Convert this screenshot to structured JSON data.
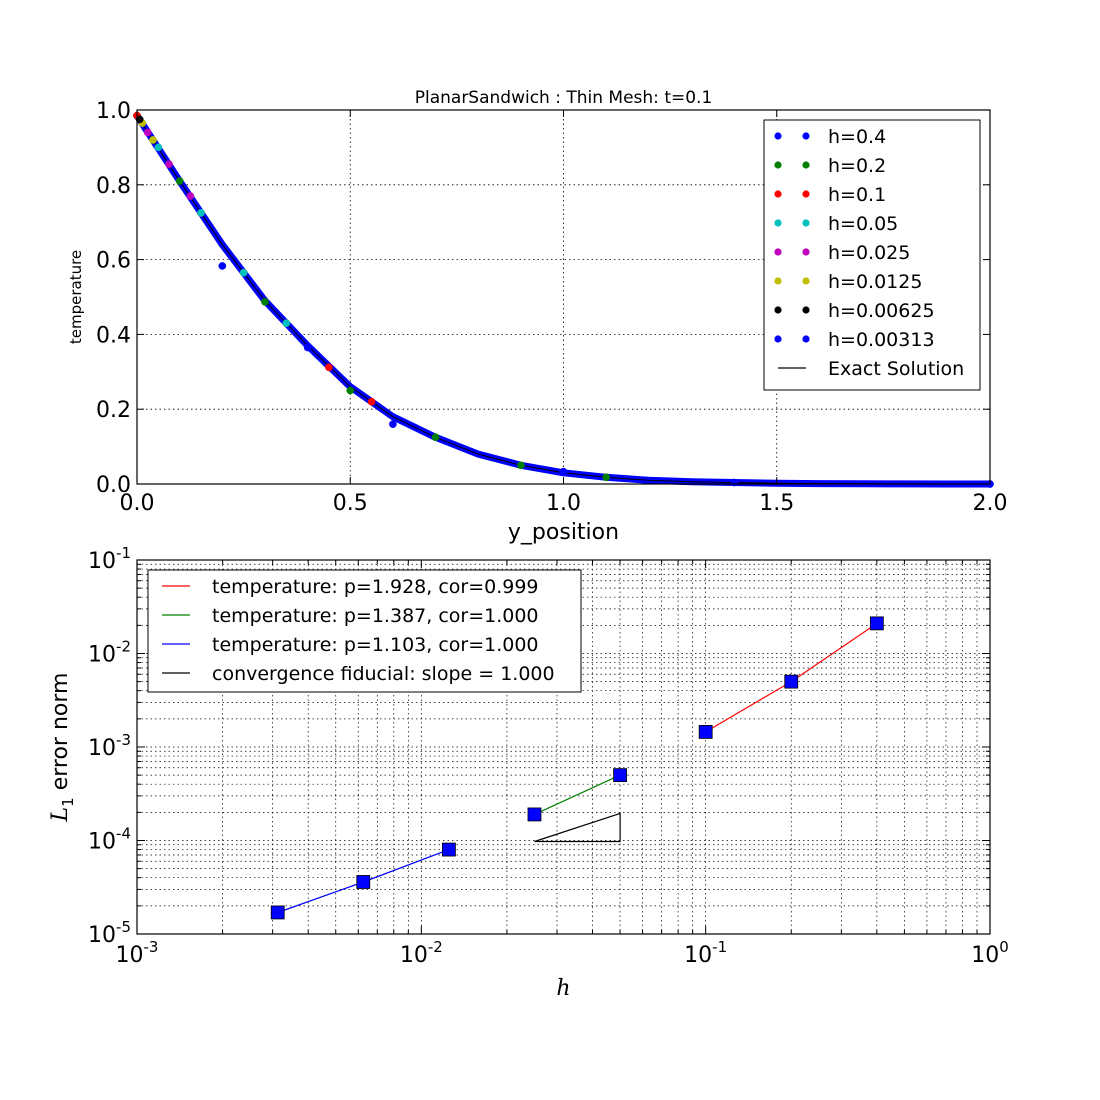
{
  "chart_data": [
    {
      "type": "scatter",
      "title": "PlanarSandwich : Thin Mesh: t=0.1",
      "xlabel": "y_position",
      "ylabel": "temperature",
      "xlim": [
        0.0,
        2.0
      ],
      "ylim": [
        0.0,
        1.0
      ],
      "xticks": [
        "0.0",
        "0.5",
        "1.0",
        "1.5",
        "2.0"
      ],
      "yticks": [
        "0.0",
        "0.2",
        "0.4",
        "0.6",
        "0.8",
        "1.0"
      ],
      "grid": true,
      "legend_position": "top-right",
      "exact_solution": {
        "name": "Exact Solution",
        "color": "#000000",
        "x": [
          0.0,
          0.1,
          0.2,
          0.3,
          0.4,
          0.5,
          0.6,
          0.7,
          0.8,
          0.9,
          1.0,
          1.1,
          1.2,
          1.3,
          1.4,
          1.5,
          1.6,
          1.7,
          1.8,
          1.9,
          2.0
        ],
        "y": [
          0.985,
          0.81,
          0.64,
          0.49,
          0.37,
          0.26,
          0.18,
          0.125,
          0.08,
          0.05,
          0.03,
          0.018,
          0.01,
          0.006,
          0.004,
          0.002,
          0.001,
          0.0005,
          0.0002,
          0.0001,
          0.0
        ]
      },
      "series": [
        {
          "name": "h=0.4",
          "color": "#0000ff",
          "x": [
            0.0,
            0.2,
            0.4,
            0.6,
            1.0,
            1.4,
            2.0
          ],
          "y": [
            0.985,
            0.583,
            0.365,
            0.16,
            0.033,
            0.004,
            0.0
          ]
        },
        {
          "name": "h=0.2",
          "color": "#008000",
          "x": [
            0.0,
            0.1,
            0.3,
            0.5,
            0.7,
            0.9,
            1.1
          ],
          "y": [
            0.985,
            0.81,
            0.487,
            0.25,
            0.125,
            0.05,
            0.018
          ]
        },
        {
          "name": "h=0.1",
          "color": "#ff0000",
          "x": [
            0.0,
            0.15,
            0.25,
            0.35,
            0.45,
            0.55
          ],
          "y": [
            0.985,
            0.725,
            0.565,
            0.43,
            0.312,
            0.22
          ]
        },
        {
          "name": "h=0.05",
          "color": "#00bfbf",
          "x": [
            0.05,
            0.15,
            0.25,
            0.35
          ],
          "y": [
            0.9,
            0.725,
            0.565,
            0.43
          ]
        },
        {
          "name": "h=0.025",
          "color": "#bf00bf",
          "x": [
            0.025,
            0.075,
            0.125
          ],
          "y": [
            0.94,
            0.855,
            0.77
          ]
        },
        {
          "name": "h=0.0125",
          "color": "#bfbf00",
          "x": [
            0.0125,
            0.0375
          ],
          "y": [
            0.965,
            0.92
          ]
        },
        {
          "name": "h=0.00625",
          "color": "#000000",
          "x": [
            0.00625
          ],
          "y": [
            0.975
          ]
        },
        {
          "name": "h=0.00313",
          "color": "#0000ff",
          "x": [],
          "y": []
        }
      ]
    },
    {
      "type": "line",
      "xlabel": "h",
      "ylabel": "L1 error norm",
      "ylabel_main": "L",
      "ylabel_sub": "1",
      "ylabel_rest": " error norm",
      "xscale": "log",
      "yscale": "log",
      "xlim": [
        0.001,
        1.0
      ],
      "ylim": [
        1e-05,
        0.1
      ],
      "xtick_bases": [
        "10",
        "10",
        "10",
        "10"
      ],
      "xtick_exps": [
        "-3",
        "-2",
        "-1",
        "0"
      ],
      "ytick_bases": [
        "10",
        "10",
        "10",
        "10",
        "10"
      ],
      "ytick_exps": [
        "-5",
        "-4",
        "-3",
        "-2",
        "-1"
      ],
      "grid": true,
      "legend_position": "top-left",
      "series": [
        {
          "name": "temperature: p=1.928, cor=0.999",
          "color": "#ff0000",
          "x": [
            0.1,
            0.2,
            0.4
          ],
          "y": [
            0.00145,
            0.005,
            0.021
          ]
        },
        {
          "name": "temperature: p=1.387, cor=1.000",
          "color": "#008000",
          "x": [
            0.025,
            0.05
          ],
          "y": [
            0.00019,
            0.0005
          ]
        },
        {
          "name": "temperature: p=1.103, cor=1.000",
          "color": "#0000ff",
          "x": [
            0.003125,
            0.00625,
            0.0125
          ],
          "y": [
            1.7e-05,
            3.6e-05,
            8e-05
          ]
        },
        {
          "name": "convergence fiducial: slope = 1.000",
          "color": "#000000",
          "x": [
            0.025,
            0.05,
            0.05,
            0.025
          ],
          "y": [
            9.75e-05,
            9.75e-05,
            0.000195,
            9.75e-05
          ]
        }
      ],
      "marker_color": "#0000ff"
    }
  ]
}
